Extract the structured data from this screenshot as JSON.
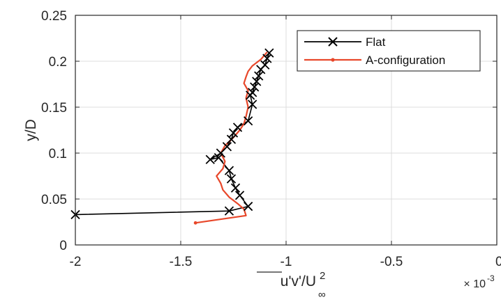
{
  "chart_data": {
    "type": "line",
    "xlabel": "u'v'/U∞²",
    "xlabel_parts": {
      "main": "u'v'/U",
      "sup": "2",
      "sub": "∞"
    },
    "ylabel": "y/D",
    "x_multiplier": "× 10⁻³",
    "x_multiplier_parts": {
      "base": "× 10",
      "exp": "-3"
    },
    "xlim": [
      -2,
      0
    ],
    "ylim": [
      0,
      0.25
    ],
    "x_ticks": [
      -2,
      -1.5,
      -1,
      -0.5,
      0
    ],
    "x_tick_labels": [
      "-2",
      "-1.5",
      "-1",
      "-0.5",
      "0"
    ],
    "y_ticks": [
      0,
      0.05,
      0.1,
      0.15,
      0.2,
      0.25
    ],
    "y_tick_labels": [
      "0",
      "0.05",
      "0.1",
      "0.15",
      "0.2",
      "0.25"
    ],
    "grid": true,
    "legend_position": "top-right",
    "series": [
      {
        "name": "Flat",
        "color": "#000000",
        "marker": "x",
        "x": [
          -2.0,
          -1.27,
          -1.18,
          -1.22,
          -1.24,
          -1.26,
          -1.27,
          -1.32,
          -1.36,
          -1.31,
          -1.28,
          -1.26,
          -1.25,
          -1.23,
          -1.18,
          -1.16,
          -1.17,
          -1.16,
          -1.15,
          -1.14,
          -1.13,
          -1.12,
          -1.1,
          -1.09,
          -1.08
        ],
        "y": [
          0.033,
          0.037,
          0.042,
          0.054,
          0.062,
          0.072,
          0.081,
          0.095,
          0.093,
          0.1,
          0.107,
          0.115,
          0.122,
          0.128,
          0.135,
          0.153,
          0.163,
          0.166,
          0.172,
          0.178,
          0.184,
          0.191,
          0.196,
          0.203,
          0.209
        ]
      },
      {
        "name": "A-configuration",
        "color": "#e8472a",
        "marker": "dot",
        "x": [
          -1.43,
          -1.19,
          -1.2,
          -1.23,
          -1.27,
          -1.3,
          -1.31,
          -1.33,
          -1.3,
          -1.29,
          -1.31,
          -1.29,
          -1.25,
          -1.22,
          -1.2,
          -1.19,
          -1.18,
          -1.19,
          -1.18,
          -1.2,
          -1.19,
          -1.18,
          -1.16,
          -1.12,
          -1.09
        ],
        "y": [
          0.024,
          0.032,
          0.039,
          0.045,
          0.052,
          0.06,
          0.067,
          0.075,
          0.083,
          0.091,
          0.1,
          0.108,
          0.117,
          0.125,
          0.132,
          0.14,
          0.15,
          0.16,
          0.168,
          0.176,
          0.183,
          0.189,
          0.195,
          0.202,
          0.21
        ]
      }
    ]
  }
}
